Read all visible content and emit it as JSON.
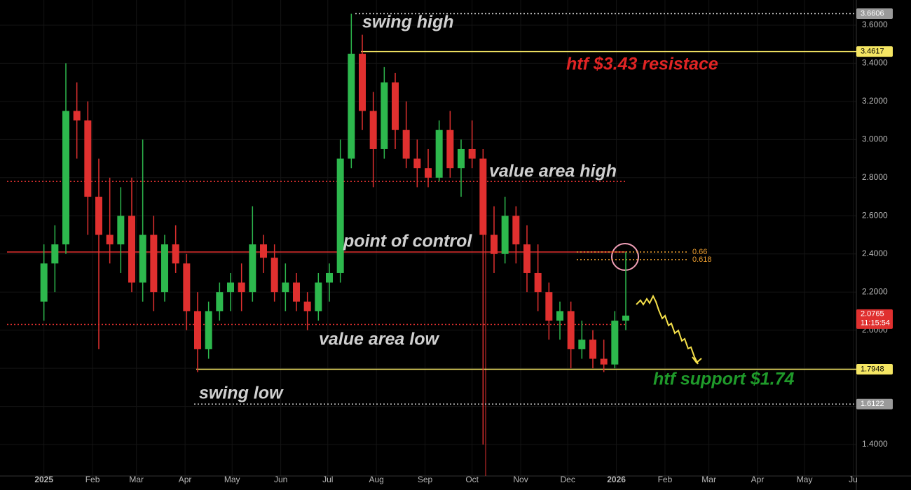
{
  "chart_data": {
    "type": "candlestick",
    "up_color": "#2db84d",
    "down_color": "#e0302f",
    "x": [
      0,
      7,
      14,
      21,
      28,
      35,
      42,
      49,
      56,
      63,
      70,
      77,
      84,
      91,
      98,
      105,
      112,
      119,
      126,
      133,
      140,
      147,
      154,
      161,
      168,
      175,
      182,
      189,
      196,
      203,
      210,
      217,
      224,
      231,
      238,
      245,
      252,
      259,
      266,
      273,
      280,
      287,
      294,
      301,
      308,
      315,
      322,
      329,
      336,
      343,
      350,
      357,
      364,
      371
    ],
    "candles": [
      [
        2.15,
        2.45,
        2.05,
        2.35
      ],
      [
        2.35,
        2.55,
        2.2,
        2.45
      ],
      [
        2.45,
        3.4,
        2.4,
        3.15
      ],
      [
        3.15,
        3.3,
        2.9,
        3.1
      ],
      [
        3.1,
        3.2,
        2.5,
        2.7
      ],
      [
        2.7,
        2.9,
        1.9,
        2.5
      ],
      [
        2.5,
        2.8,
        2.35,
        2.45
      ],
      [
        2.45,
        2.75,
        2.3,
        2.6
      ],
      [
        2.6,
        2.8,
        2.2,
        2.25
      ],
      [
        2.25,
        3.0,
        2.15,
        2.5
      ],
      [
        2.5,
        2.6,
        2.1,
        2.2
      ],
      [
        2.2,
        2.5,
        2.15,
        2.45
      ],
      [
        2.45,
        2.55,
        2.3,
        2.35
      ],
      [
        2.35,
        2.4,
        2.0,
        2.1
      ],
      [
        2.1,
        2.2,
        1.78,
        1.9
      ],
      [
        1.9,
        2.15,
        1.85,
        2.1
      ],
      [
        2.1,
        2.25,
        2.05,
        2.2
      ],
      [
        2.2,
        2.3,
        2.1,
        2.25
      ],
      [
        2.25,
        2.35,
        2.1,
        2.2
      ],
      [
        2.2,
        2.65,
        2.15,
        2.45
      ],
      [
        2.45,
        2.5,
        2.3,
        2.38
      ],
      [
        2.38,
        2.45,
        2.15,
        2.2
      ],
      [
        2.2,
        2.35,
        2.1,
        2.25
      ],
      [
        2.25,
        2.3,
        2.1,
        2.15
      ],
      [
        2.15,
        2.2,
        2.0,
        2.1
      ],
      [
        2.1,
        2.3,
        2.05,
        2.25
      ],
      [
        2.25,
        2.35,
        2.15,
        2.3
      ],
      [
        2.3,
        3.0,
        2.25,
        2.9
      ],
      [
        2.9,
        3.66,
        2.85,
        3.45
      ],
      [
        3.45,
        3.55,
        3.05,
        3.15
      ],
      [
        3.15,
        3.25,
        2.75,
        2.95
      ],
      [
        2.95,
        3.38,
        2.9,
        3.3
      ],
      [
        3.3,
        3.35,
        2.95,
        3.05
      ],
      [
        3.05,
        3.2,
        2.85,
        2.9
      ],
      [
        2.9,
        3.0,
        2.75,
        2.85
      ],
      [
        2.85,
        2.95,
        2.75,
        2.8
      ],
      [
        2.8,
        3.1,
        2.78,
        3.05
      ],
      [
        3.05,
        3.15,
        2.8,
        2.85
      ],
      [
        2.85,
        3.0,
        2.7,
        2.95
      ],
      [
        2.95,
        3.1,
        2.85,
        2.9
      ],
      [
        2.9,
        2.95,
        1.4,
        2.5
      ],
      [
        2.5,
        2.65,
        2.3,
        2.4
      ],
      [
        2.4,
        2.7,
        2.35,
        2.6
      ],
      [
        2.6,
        2.65,
        2.35,
        2.45
      ],
      [
        2.45,
        2.55,
        2.2,
        2.3
      ],
      [
        2.3,
        2.45,
        2.1,
        2.2
      ],
      [
        2.2,
        2.25,
        1.95,
        2.05
      ],
      [
        2.05,
        2.15,
        1.95,
        2.1
      ],
      [
        2.1,
        2.15,
        1.8,
        1.9
      ],
      [
        1.9,
        2.05,
        1.85,
        1.95
      ],
      [
        1.95,
        2.0,
        1.8,
        1.85
      ],
      [
        1.85,
        1.95,
        1.78,
        1.82
      ],
      [
        1.82,
        2.1,
        1.8,
        2.05
      ],
      [
        2.05,
        2.41,
        2.0,
        2.0765
      ]
    ],
    "xlim": [
      -28,
      518
    ],
    "ylim": [
      1.235,
      3.732
    ],
    "xticks": [
      {
        "value": 0,
        "label": "2025"
      },
      {
        "value": 31,
        "label": "Feb"
      },
      {
        "value": 59,
        "label": "Mar"
      },
      {
        "value": 90,
        "label": "Apr"
      },
      {
        "value": 120,
        "label": "May"
      },
      {
        "value": 151,
        "label": "Jun"
      },
      {
        "value": 181,
        "label": "Jul"
      },
      {
        "value": 212,
        "label": "Aug"
      },
      {
        "value": 243,
        "label": "Sep"
      },
      {
        "value": 273,
        "label": "Oct"
      },
      {
        "value": 304,
        "label": "Nov"
      },
      {
        "value": 334,
        "label": "Dec"
      },
      {
        "value": 365,
        "label": "2026"
      },
      {
        "value": 396,
        "label": "Feb"
      },
      {
        "value": 424,
        "label": "Mar"
      },
      {
        "value": 455,
        "label": "Apr"
      },
      {
        "value": 485,
        "label": "May"
      },
      {
        "value": 516,
        "label": "Ju"
      }
    ],
    "yticks": [
      {
        "value": 1.4,
        "label": "1.4000"
      },
      {
        "value": 1.6,
        "label": "1.6000"
      },
      {
        "value": 1.8,
        "label": "1.8000"
      },
      {
        "value": 2.0,
        "label": "2.0000"
      },
      {
        "value": 2.2,
        "label": "2.2000"
      },
      {
        "value": 2.4,
        "label": "2.4000"
      },
      {
        "value": 2.6,
        "label": "2.6000"
      },
      {
        "value": 2.8,
        "label": "2.8000"
      },
      {
        "value": 3.0,
        "label": "3.0000"
      },
      {
        "value": 3.2,
        "label": "3.2000"
      },
      {
        "value": 3.4,
        "label": "3.4000"
      },
      {
        "value": 3.6,
        "label": "3.6000"
      }
    ],
    "price_labels": [
      {
        "value": 3.6606,
        "color": "#9a9a9a"
      },
      {
        "value": 3.4617,
        "color": "#f5e663"
      },
      {
        "value": 2.0765,
        "color": "#e0302f",
        "countdown": "11:15:54"
      },
      {
        "value": 1.7948,
        "color": "#f5e663"
      },
      {
        "value": 1.6122,
        "color": "#9a9a9a"
      }
    ],
    "levels": [
      {
        "value": 2.78,
        "color": "#e0302f",
        "style": "dotted"
      },
      {
        "value": 2.41,
        "color": "#e0302f",
        "style": "solid"
      },
      {
        "value": 2.03,
        "color": "#e0302f",
        "style": "dotted"
      }
    ],
    "fib": [
      {
        "ratio": 0.66,
        "price": 2.41
      },
      {
        "ratio": 0.618,
        "price": 2.37
      }
    ],
    "annotations": [
      {
        "text": "swing high",
        "color": "#d0d0d0"
      },
      {
        "text": "htf $3.43 resistace",
        "color": "#e02424"
      },
      {
        "text": "value area high",
        "color": "#d0d0d0"
      },
      {
        "text": "point of control",
        "color": "#d0d0d0"
      },
      {
        "text": "value area low",
        "color": "#d0d0d0"
      },
      {
        "text": "swing low",
        "color": "#d0d0d0"
      },
      {
        "text": "htf support $1.74",
        "color": "#1f9a2a"
      }
    ]
  }
}
